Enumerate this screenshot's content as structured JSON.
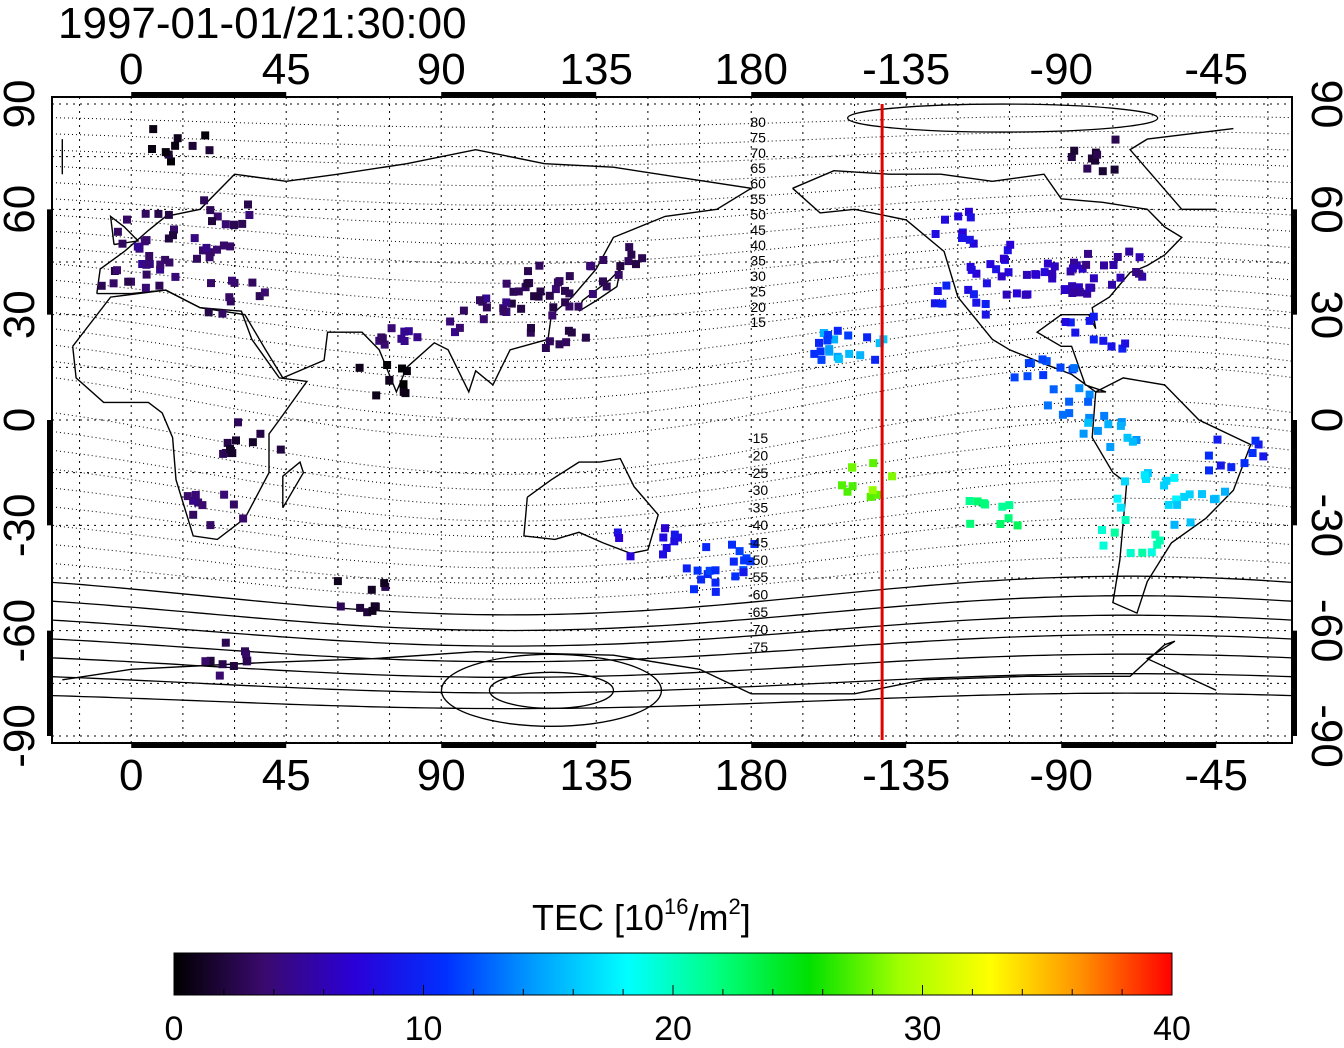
{
  "title": "1997-01-01/21:30:00",
  "map": {
    "lon_labels_top": [
      "0",
      "45",
      "90",
      "135",
      "180",
      "-135",
      "-90",
      "-45"
    ],
    "lon_labels_bottom": [
      "0",
      "45",
      "90",
      "135",
      "180",
      "-135",
      "-90",
      "-45"
    ],
    "lat_labels_left": [
      "90",
      "60",
      "30",
      "0",
      "-30",
      "-60",
      "-90"
    ],
    "lat_labels_right": [
      "90",
      "60",
      "30",
      "0",
      "-30",
      "-60",
      "-90"
    ],
    "lon_range": [
      -23,
      337
    ],
    "lat_range": [
      -92,
      92
    ],
    "terminator_lon": -142,
    "terminator_color": "#e00000",
    "contour_labels_north": [
      "80",
      "75",
      "70",
      "65",
      "60",
      "55",
      "50",
      "45",
      "40",
      "35",
      "30",
      "25",
      "20",
      "15"
    ],
    "contour_labels_south": [
      "-15",
      "-20",
      "-25",
      "-30",
      "-35",
      "-40",
      "-45",
      "-50",
      "-55",
      "-60",
      "-65",
      "-70",
      "-75"
    ]
  },
  "colorbar": {
    "label_main": "TEC  [10",
    "label_sup": "16",
    "label_unit": "/m",
    "label_sup2": "2",
    "label_close": "]",
    "ticks": [
      "0",
      "10",
      "20",
      "30",
      "40"
    ],
    "min": 0,
    "max": 40,
    "colors": [
      "#000000",
      "#3a0a6e",
      "#2a00d8",
      "#0030ff",
      "#00a0ff",
      "#00ffff",
      "#00ff80",
      "#00e000",
      "#a0ff00",
      "#ffff00",
      "#ff9000",
      "#ff0000"
    ]
  },
  "chart_data": {
    "type": "heatmap",
    "title": "1997-01-01/21:30:00",
    "colorbar_label": "TEC [10^16/m^2]",
    "value_range": [
      0,
      40
    ],
    "points": [
      {
        "lon": 10,
        "lat": 45,
        "tec": 4
      },
      {
        "lon": 20,
        "lat": 50,
        "tec": 4
      },
      {
        "lon": 0,
        "lat": 40,
        "tec": 3
      },
      {
        "lon": 5,
        "lat": 55,
        "tec": 3
      },
      {
        "lon": 30,
        "lat": 60,
        "tec": 3
      },
      {
        "lon": 30,
        "lat": 35,
        "tec": 3
      },
      {
        "lon": 110,
        "lat": 35,
        "tec": 3
      },
      {
        "lon": 120,
        "lat": 40,
        "tec": 3
      },
      {
        "lon": 130,
        "lat": 35,
        "tec": 3
      },
      {
        "lon": 140,
        "lat": 45,
        "tec": 3
      },
      {
        "lon": 125,
        "lat": 25,
        "tec": 3
      },
      {
        "lon": 100,
        "lat": 30,
        "tec": 4
      },
      {
        "lon": 80,
        "lat": 25,
        "tec": 4
      },
      {
        "lon": 75,
        "lat": 12,
        "tec": 1
      },
      {
        "lon": -150,
        "lat": 20,
        "tec": 15
      },
      {
        "lon": -153,
        "lat": 22,
        "tec": 11
      },
      {
        "lon": -120,
        "lat": 35,
        "tec": 9
      },
      {
        "lon": -110,
        "lat": 45,
        "tec": 8
      },
      {
        "lon": -100,
        "lat": 40,
        "tec": 7
      },
      {
        "lon": -90,
        "lat": 40,
        "tec": 6
      },
      {
        "lon": -80,
        "lat": 40,
        "tec": 6
      },
      {
        "lon": -75,
        "lat": 45,
        "tec": 5
      },
      {
        "lon": -120,
        "lat": 55,
        "tec": 8
      },
      {
        "lon": -80,
        "lat": 25,
        "tec": 9
      },
      {
        "lon": -95,
        "lat": 15,
        "tec": 12
      },
      {
        "lon": -85,
        "lat": 5,
        "tec": 13
      },
      {
        "lon": -75,
        "lat": -5,
        "tec": 15
      },
      {
        "lon": -65,
        "lat": -20,
        "tec": 17
      },
      {
        "lon": -70,
        "lat": -33,
        "tec": 20
      },
      {
        "lon": -50,
        "lat": -25,
        "tec": 16
      },
      {
        "lon": -40,
        "lat": -10,
        "tec": 10
      },
      {
        "lon": -110,
        "lat": -27,
        "tec": 22
      },
      {
        "lon": -145,
        "lat": -17,
        "tec": 28
      },
      {
        "lon": 175,
        "lat": -40,
        "tec": 11
      },
      {
        "lon": 170,
        "lat": -45,
        "tec": 10
      },
      {
        "lon": 150,
        "lat": -35,
        "tec": 8
      },
      {
        "lon": 25,
        "lat": -25,
        "tec": 4
      },
      {
        "lon": 35,
        "lat": -5,
        "tec": 2
      },
      {
        "lon": 65,
        "lat": -50,
        "tec": 2
      },
      {
        "lon": 30,
        "lat": -68,
        "tec": 3
      },
      {
        "lon": 15,
        "lat": 78,
        "tec": 1
      },
      {
        "lon": -80,
        "lat": 75,
        "tec": 2
      }
    ]
  }
}
